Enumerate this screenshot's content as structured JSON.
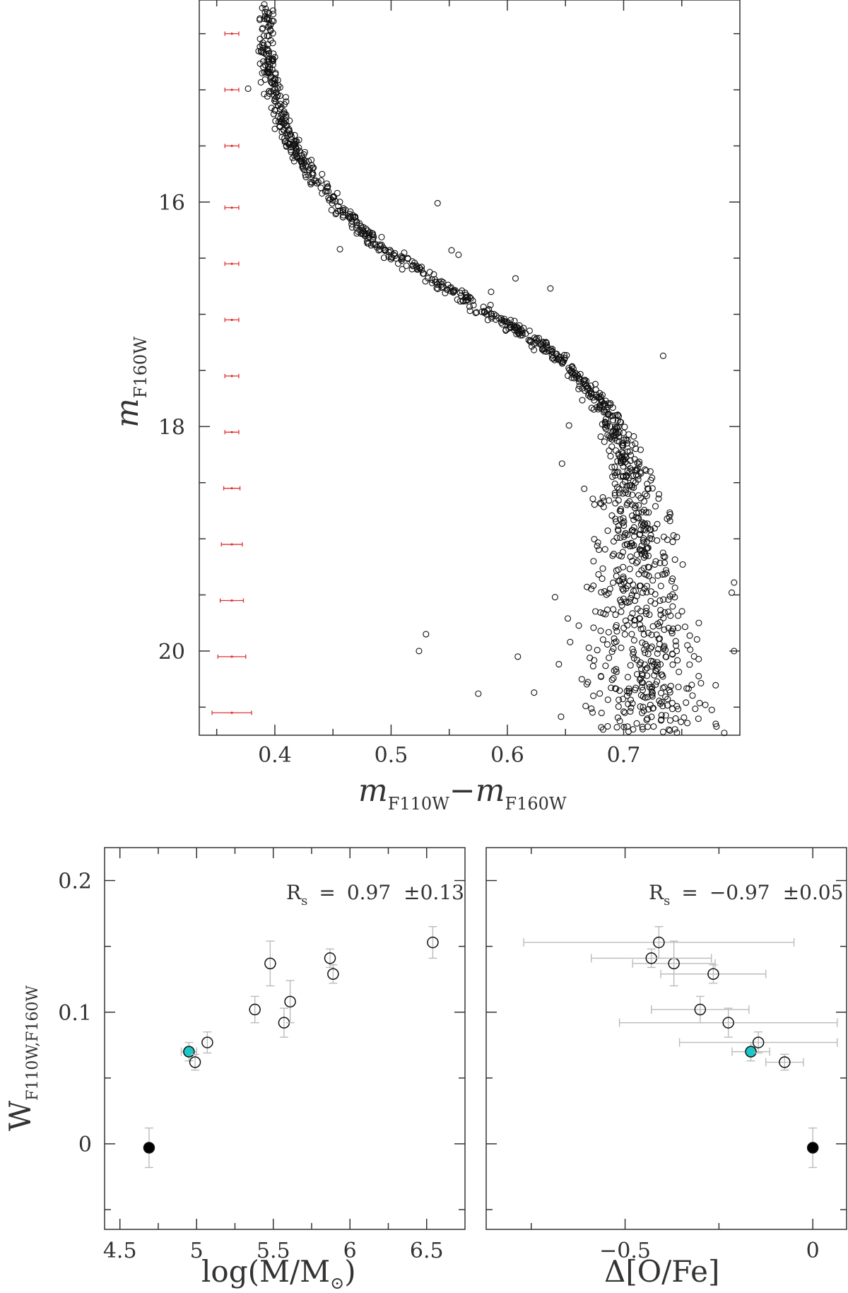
{
  "chart_data": [
    {
      "type": "scatter",
      "title": "",
      "xlabel": "m_F110W − m_F160W",
      "xlabel_parts": {
        "m1": "m",
        "s1": "F110W",
        "dash": "−",
        "m2": "m",
        "s2": "F160W"
      },
      "ylabel": "m_F160W",
      "ylabel_parts": {
        "m": "m",
        "s": "F160W"
      },
      "xlim": [
        0.335,
        0.8
      ],
      "ylim": [
        20.75,
        14.2
      ],
      "y_inverted": true,
      "xticks": [
        0.4,
        0.5,
        0.6,
        0.7
      ],
      "xtick_labels": [
        "0.4",
        "0.5",
        "0.6",
        "0.7"
      ],
      "yticks": [
        16,
        18,
        20
      ],
      "ytick_labels": [
        "16",
        "18",
        "20"
      ],
      "grid": false,
      "marker": "open-circle",
      "sequence_ridge": [
        [
          0.395,
          14.2
        ],
        [
          0.392,
          14.6
        ],
        [
          0.398,
          15.0
        ],
        [
          0.41,
          15.4
        ],
        [
          0.43,
          15.75
        ],
        [
          0.46,
          16.1
        ],
        [
          0.49,
          16.4
        ],
        [
          0.53,
          16.65
        ],
        [
          0.57,
          16.9
        ],
        [
          0.61,
          17.15
        ],
        [
          0.64,
          17.35
        ],
        [
          0.665,
          17.6
        ],
        [
          0.685,
          17.85
        ],
        [
          0.695,
          18.1
        ],
        [
          0.705,
          18.4
        ],
        [
          0.708,
          18.7
        ],
        [
          0.71,
          19.0
        ],
        [
          0.712,
          19.3
        ],
        [
          0.715,
          19.6
        ],
        [
          0.718,
          19.9
        ],
        [
          0.72,
          20.2
        ],
        [
          0.722,
          20.5
        ],
        [
          0.725,
          20.75
        ]
      ],
      "outliers": [
        [
          0.54,
          16.01
        ],
        [
          0.377,
          14.99
        ],
        [
          0.552,
          16.43
        ],
        [
          0.558,
          16.47
        ],
        [
          0.607,
          16.68
        ],
        [
          0.637,
          16.77
        ],
        [
          0.586,
          16.8
        ],
        [
          0.456,
          16.42
        ],
        [
          0.734,
          17.37
        ],
        [
          0.653,
          17.99
        ],
        [
          0.647,
          18.33
        ],
        [
          0.53,
          19.85
        ],
        [
          0.524,
          20.0
        ],
        [
          0.609,
          20.05
        ],
        [
          0.575,
          20.38
        ],
        [
          0.623,
          20.37
        ],
        [
          0.641,
          19.52
        ],
        [
          0.652,
          19.71
        ],
        [
          0.654,
          19.92
        ],
        [
          0.795,
          19.39
        ],
        [
          0.793,
          19.48
        ],
        [
          0.795,
          20.0
        ]
      ],
      "error_bars": {
        "x": 0.363,
        "color": "#e03030",
        "rows": [
          {
            "mag": 14.5,
            "xerr": 0.006
          },
          {
            "mag": 15.0,
            "xerr": 0.006
          },
          {
            "mag": 15.5,
            "xerr": 0.006
          },
          {
            "mag": 16.05,
            "xerr": 0.006
          },
          {
            "mag": 16.55,
            "xerr": 0.006
          },
          {
            "mag": 17.05,
            "xerr": 0.006
          },
          {
            "mag": 17.55,
            "xerr": 0.006
          },
          {
            "mag": 18.05,
            "xerr": 0.006
          },
          {
            "mag": 18.55,
            "xerr": 0.007
          },
          {
            "mag": 19.05,
            "xerr": 0.009
          },
          {
            "mag": 19.55,
            "xerr": 0.01
          },
          {
            "mag": 20.05,
            "xerr": 0.012
          },
          {
            "mag": 20.55,
            "xerr": 0.017
          }
        ]
      }
    },
    {
      "type": "scatter",
      "title": "",
      "xlabel": "log(M/M⊙)",
      "xlabel_text": "log(M/M",
      "xlabel_sun": "⊙",
      "xlabel_close": ")",
      "ylabel": "W_F110W,F160W",
      "ylabel_parts": {
        "w": "W",
        "s": "F110W,F160W"
      },
      "xlim": [
        4.4,
        6.75
      ],
      "ylim": [
        -0.065,
        0.225
      ],
      "xticks": [
        4.5,
        5,
        5.5,
        6,
        6.5
      ],
      "xtick_labels": [
        "4.5",
        "5",
        "5.5",
        "6",
        "6.5"
      ],
      "yticks": [
        0,
        0.1,
        0.2
      ],
      "ytick_labels": [
        "0",
        "0.1",
        "0.2"
      ],
      "grid": false,
      "annotation": {
        "label": "R",
        "sub": "s",
        "eq": "=",
        "value": "0.97",
        "err": "±0.13"
      },
      "points": [
        {
          "x": 4.69,
          "y": -0.003,
          "yerr": 0.015,
          "style": "filled-black"
        },
        {
          "x": 4.95,
          "y": 0.07,
          "yerr": 0.007,
          "xerr": 0.05,
          "style": "filled-cyan"
        },
        {
          "x": 4.99,
          "y": 0.062,
          "yerr": 0.006,
          "style": "open"
        },
        {
          "x": 5.07,
          "y": 0.077,
          "yerr": 0.008,
          "style": "open"
        },
        {
          "x": 5.38,
          "y": 0.102,
          "yerr": 0.01,
          "style": "open"
        },
        {
          "x": 5.48,
          "y": 0.137,
          "yerr": 0.017,
          "style": "open"
        },
        {
          "x": 5.57,
          "y": 0.092,
          "yerr": 0.011,
          "style": "open"
        },
        {
          "x": 5.61,
          "y": 0.108,
          "yerr": 0.016,
          "style": "open"
        },
        {
          "x": 5.87,
          "y": 0.141,
          "yerr": 0.007,
          "style": "open"
        },
        {
          "x": 5.89,
          "y": 0.129,
          "yerr": 0.007,
          "style": "open"
        },
        {
          "x": 6.54,
          "y": 0.153,
          "yerr": 0.012,
          "style": "open"
        }
      ]
    },
    {
      "type": "scatter",
      "title": "",
      "xlabel": "Δ[O/Fe]",
      "ylabel": "",
      "xlim": [
        -0.87,
        0.09
      ],
      "ylim": [
        -0.065,
        0.225
      ],
      "xticks": [
        -0.5,
        0
      ],
      "xtick_labels": [
        "−0.5",
        "0"
      ],
      "yticks": [
        0,
        0.1,
        0.2
      ],
      "grid": false,
      "annotation": {
        "label": "R",
        "sub": "s",
        "eq": "=",
        "value": "−0.97",
        "err": "±0.05"
      },
      "points": [
        {
          "x": 0.0,
          "y": -0.003,
          "yerr": 0.015,
          "style": "filled-black"
        },
        {
          "x": -0.165,
          "y": 0.07,
          "xerr": 0.05,
          "yerr": 0.007,
          "style": "filled-cyan"
        },
        {
          "x": -0.075,
          "y": 0.062,
          "xerr": 0.05,
          "yerr": 0.006,
          "style": "open"
        },
        {
          "x": -0.145,
          "y": 0.077,
          "xerr": 0.21,
          "yerr": 0.008,
          "style": "open"
        },
        {
          "x": -0.3,
          "y": 0.102,
          "xerr": 0.13,
          "yerr": 0.01,
          "style": "open"
        },
        {
          "x": -0.225,
          "y": 0.092,
          "xerr": 0.29,
          "yerr": 0.011,
          "style": "open"
        },
        {
          "x": -0.37,
          "y": 0.137,
          "xerr": 0.11,
          "yerr": 0.017,
          "style": "open"
        },
        {
          "x": -0.43,
          "y": 0.141,
          "xerr": 0.16,
          "yerr": 0.007,
          "style": "open"
        },
        {
          "x": -0.265,
          "y": 0.129,
          "xerr": 0.14,
          "yerr": 0.007,
          "style": "open"
        },
        {
          "x": -0.41,
          "y": 0.153,
          "xerr": 0.36,
          "yerr": 0.012,
          "style": "open"
        }
      ]
    }
  ]
}
